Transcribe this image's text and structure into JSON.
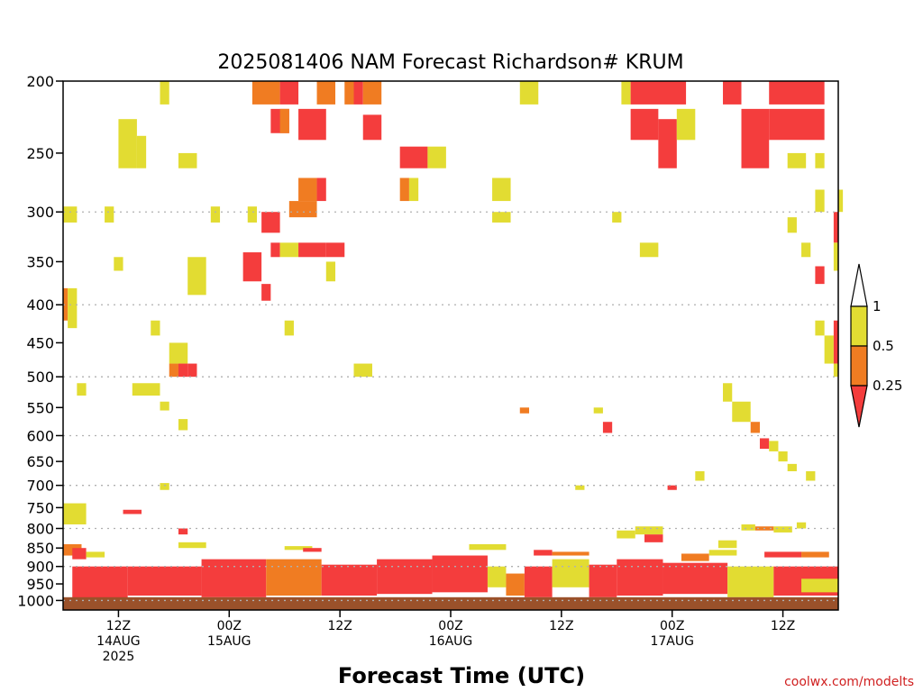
{
  "colors": {
    "band_low": "#f43d3d",
    "band_mid": "#f07c22",
    "band_high": "#e2dc32",
    "ground": "#9a512a",
    "grid": "#b0b0b0",
    "credit": "#d02020"
  },
  "credit": "coolwx.com/modelts",
  "chart_data": {
    "type": "heatmap",
    "title": "2025081406 NAM Forecast Richardson# KRUM",
    "xlabel": "Forecast Time (UTC)",
    "ylabel": "",
    "x_unit": "hours since 2025-08-14 06Z",
    "xlim": [
      0,
      84
    ],
    "ylim": [
      1030,
      200
    ],
    "y_scale": "log-pressure",
    "grid": "dotted horizontal",
    "y_ticks": [
      200,
      250,
      300,
      350,
      400,
      450,
      500,
      550,
      600,
      650,
      700,
      750,
      800,
      850,
      900,
      950,
      1000
    ],
    "y_grid": [
      300,
      400,
      500,
      600,
      700,
      800,
      900,
      1000
    ],
    "x_ticks": [
      {
        "hour": 6,
        "lines": [
          "12Z",
          "14AUG",
          "2025"
        ]
      },
      {
        "hour": 18,
        "lines": [
          "00Z",
          "15AUG"
        ]
      },
      {
        "hour": 30,
        "lines": [
          "12Z"
        ]
      },
      {
        "hour": 42,
        "lines": [
          "00Z",
          "16AUG"
        ]
      },
      {
        "hour": 54,
        "lines": [
          "12Z"
        ]
      },
      {
        "hour": 66,
        "lines": [
          "00Z",
          "17AUG"
        ]
      },
      {
        "hour": 78,
        "lines": [
          "12Z"
        ]
      }
    ],
    "legend": {
      "placement": "right",
      "levels": [
        "1",
        "0.5",
        "0.25"
      ],
      "bands": [
        {
          "range": "> 1",
          "color": "#ffffff"
        },
        {
          "range": "0.5 - 1",
          "color": "#e2dc32"
        },
        {
          "range": "0.25 - 0.5",
          "color": "#f07c22"
        },
        {
          "range": "< 0.25",
          "color": "#f43d3d"
        }
      ]
    },
    "ground": {
      "from_p": 990,
      "to_p": 1030
    },
    "cells": [
      [
        10.5,
        11.5,
        200,
        215,
        "y"
      ],
      [
        20.5,
        23.5,
        200,
        215,
        "o"
      ],
      [
        23.5,
        25.5,
        200,
        215,
        "r"
      ],
      [
        27.5,
        29.5,
        200,
        215,
        "o"
      ],
      [
        30.5,
        31.5,
        200,
        215,
        "o"
      ],
      [
        31.5,
        32.5,
        200,
        215,
        "r"
      ],
      [
        32.5,
        34.5,
        200,
        215,
        "o"
      ],
      [
        49.5,
        51.5,
        200,
        215,
        "y"
      ],
      [
        60.5,
        61.5,
        200,
        215,
        "y"
      ],
      [
        61.5,
        67.5,
        200,
        215,
        "r"
      ],
      [
        71.5,
        73.5,
        200,
        215,
        "r"
      ],
      [
        76.5,
        82.5,
        200,
        215,
        "r"
      ],
      [
        6,
        8,
        225,
        262,
        "y"
      ],
      [
        8,
        9,
        237,
        262,
        "y"
      ],
      [
        12.5,
        14.5,
        250,
        262,
        "y"
      ],
      [
        22.5,
        24.5,
        218,
        235,
        "r"
      ],
      [
        23.5,
        24.5,
        218,
        235,
        "o"
      ],
      [
        25.5,
        28.5,
        218,
        240,
        "r"
      ],
      [
        32.5,
        34.5,
        222,
        240,
        "r"
      ],
      [
        36.5,
        39.5,
        245,
        262,
        "r"
      ],
      [
        39.5,
        41.5,
        245,
        262,
        "y"
      ],
      [
        61.5,
        64.5,
        218,
        240,
        "r"
      ],
      [
        64.5,
        66.5,
        225,
        262,
        "r"
      ],
      [
        66.5,
        68.5,
        218,
        240,
        "y"
      ],
      [
        73.5,
        76.5,
        218,
        262,
        "r"
      ],
      [
        76.5,
        82.5,
        218,
        240,
        "r"
      ],
      [
        78.5,
        80.5,
        250,
        262,
        "y"
      ],
      [
        81.5,
        82.5,
        250,
        262,
        "y"
      ],
      [
        5.5,
        6.5,
        345,
        360,
        "y"
      ],
      [
        13.5,
        15.5,
        345,
        388,
        "y"
      ],
      [
        19.5,
        21.5,
        340,
        372,
        "r"
      ],
      [
        21.5,
        22.5,
        375,
        395,
        "r"
      ],
      [
        21.5,
        23.5,
        300,
        320,
        "r"
      ],
      [
        22.5,
        23.5,
        330,
        345,
        "r"
      ],
      [
        23.5,
        25.5,
        330,
        345,
        "y"
      ],
      [
        24.5,
        27.5,
        290,
        305,
        "o"
      ],
      [
        25.5,
        27.5,
        270,
        290,
        "o"
      ],
      [
        27.5,
        28.5,
        270,
        290,
        "r"
      ],
      [
        25.5,
        28.5,
        330,
        345,
        "r"
      ],
      [
        28.5,
        30.5,
        330,
        345,
        "r"
      ],
      [
        28.5,
        29.5,
        350,
        372,
        "y"
      ],
      [
        36.5,
        37.5,
        270,
        290,
        "o"
      ],
      [
        37.5,
        38.5,
        270,
        290,
        "y"
      ],
      [
        46.5,
        48.5,
        270,
        290,
        "y"
      ],
      [
        46.5,
        48.5,
        300,
        310,
        "y"
      ],
      [
        0,
        1.5,
        295,
        310,
        "y"
      ],
      [
        0,
        0.5,
        380,
        420,
        "o"
      ],
      [
        0.5,
        1.5,
        380,
        430,
        "y"
      ],
      [
        4.5,
        5.5,
        295,
        310,
        "y"
      ],
      [
        16,
        17,
        295,
        310,
        "y"
      ],
      [
        20,
        21,
        295,
        310,
        "y"
      ],
      [
        62.5,
        64.5,
        330,
        345,
        "y"
      ],
      [
        59.5,
        60.5,
        300,
        310,
        "y"
      ],
      [
        78.5,
        79.5,
        305,
        320,
        "y"
      ],
      [
        81.5,
        82.5,
        280,
        300,
        "y"
      ],
      [
        84,
        84,
        280,
        300,
        "y"
      ],
      [
        80,
        81,
        330,
        345,
        "y"
      ],
      [
        81.5,
        82.5,
        355,
        375,
        "r"
      ],
      [
        83.5,
        84,
        300,
        330,
        "r"
      ],
      [
        83.5,
        84,
        330,
        360,
        "y"
      ],
      [
        81.5,
        82.5,
        420,
        440,
        "y"
      ],
      [
        82.5,
        83.5,
        440,
        480,
        "y"
      ],
      [
        83.5,
        84,
        420,
        480,
        "r"
      ],
      [
        83.5,
        84,
        480,
        500,
        "y"
      ],
      [
        9.5,
        10.5,
        420,
        440,
        "y"
      ],
      [
        11.5,
        13.5,
        450,
        480,
        "y"
      ],
      [
        11.5,
        12.5,
        480,
        500,
        "o"
      ],
      [
        12.5,
        13.5,
        480,
        500,
        "r"
      ],
      [
        13.5,
        14.5,
        480,
        500,
        "r"
      ],
      [
        24,
        25,
        420,
        440,
        "y"
      ],
      [
        31.5,
        33.5,
        480,
        500,
        "y"
      ],
      [
        1.5,
        2.5,
        510,
        530,
        "y"
      ],
      [
        7.5,
        10.5,
        510,
        530,
        "y"
      ],
      [
        10.5,
        11.5,
        540,
        555,
        "y"
      ],
      [
        12.5,
        13.5,
        570,
        590,
        "y"
      ],
      [
        49.5,
        50.5,
        550,
        560,
        "o"
      ],
      [
        57.5,
        58.5,
        550,
        560,
        "y"
      ],
      [
        58.5,
        59.5,
        575,
        595,
        "r"
      ],
      [
        71.5,
        72.5,
        510,
        540,
        "y"
      ],
      [
        72.5,
        74.5,
        540,
        575,
        "y"
      ],
      [
        74.5,
        75.5,
        575,
        595,
        "o"
      ],
      [
        75.5,
        76.5,
        605,
        625,
        "r"
      ],
      [
        76.5,
        77.5,
        610,
        630,
        "y"
      ],
      [
        77.5,
        78.5,
        630,
        650,
        "y"
      ],
      [
        78.5,
        79.5,
        655,
        670,
        "y"
      ],
      [
        80.5,
        81.5,
        670,
        690,
        "y"
      ],
      [
        68.5,
        69.5,
        670,
        690,
        "y"
      ],
      [
        65.5,
        66.5,
        700,
        710,
        "r"
      ],
      [
        55.5,
        56.5,
        700,
        710,
        "y"
      ],
      [
        10.5,
        11.5,
        695,
        710,
        "y"
      ],
      [
        0,
        2.5,
        740,
        790,
        "y"
      ],
      [
        6.5,
        8.5,
        755,
        765,
        "r"
      ],
      [
        12.5,
        13.5,
        800,
        815,
        "r"
      ],
      [
        62,
        65,
        795,
        815,
        "y"
      ],
      [
        60,
        62,
        805,
        825,
        "y"
      ],
      [
        63,
        65,
        815,
        835,
        "r"
      ],
      [
        71,
        73,
        830,
        850,
        "y"
      ],
      [
        73.5,
        75,
        790,
        805,
        "y"
      ],
      [
        75,
        77,
        795,
        805,
        "o"
      ],
      [
        77,
        79,
        795,
        810,
        "y"
      ],
      [
        79.5,
        80.5,
        785,
        800,
        "y"
      ],
      [
        0,
        2,
        840,
        870,
        "o"
      ],
      [
        1,
        2.5,
        850,
        880,
        "r"
      ],
      [
        2.5,
        4.5,
        860,
        875,
        "y"
      ],
      [
        12.5,
        15.5,
        835,
        850,
        "y"
      ],
      [
        24,
        27,
        845,
        855,
        "y"
      ],
      [
        26,
        28,
        850,
        860,
        "r"
      ],
      [
        44,
        48,
        840,
        855,
        "y"
      ],
      [
        51,
        53,
        855,
        870,
        "r"
      ],
      [
        53,
        57,
        860,
        870,
        "o"
      ],
      [
        67,
        70,
        865,
        885,
        "o"
      ],
      [
        70,
        73,
        855,
        870,
        "y"
      ],
      [
        76,
        80,
        860,
        875,
        "r"
      ],
      [
        80,
        83,
        860,
        875,
        "o"
      ],
      [
        1,
        7,
        900,
        1000,
        "r"
      ],
      [
        7,
        15,
        900,
        985,
        "r"
      ],
      [
        15,
        22,
        880,
        990,
        "r"
      ],
      [
        22,
        28,
        880,
        985,
        "o"
      ],
      [
        28,
        34,
        895,
        985,
        "r"
      ],
      [
        34,
        40,
        880,
        980,
        "r"
      ],
      [
        40,
        46,
        870,
        975,
        "r"
      ],
      [
        46,
        48,
        900,
        960,
        "y"
      ],
      [
        48,
        50,
        920,
        985,
        "o"
      ],
      [
        50,
        53,
        900,
        990,
        "r"
      ],
      [
        53,
        57,
        880,
        960,
        "y"
      ],
      [
        57,
        60,
        895,
        990,
        "r"
      ],
      [
        60,
        65,
        880,
        985,
        "r"
      ],
      [
        65,
        72,
        890,
        980,
        "r"
      ],
      [
        72,
        77,
        900,
        990,
        "y"
      ],
      [
        77,
        84,
        900,
        985,
        "r"
      ],
      [
        80,
        84,
        935,
        975,
        "y"
      ]
    ]
  }
}
